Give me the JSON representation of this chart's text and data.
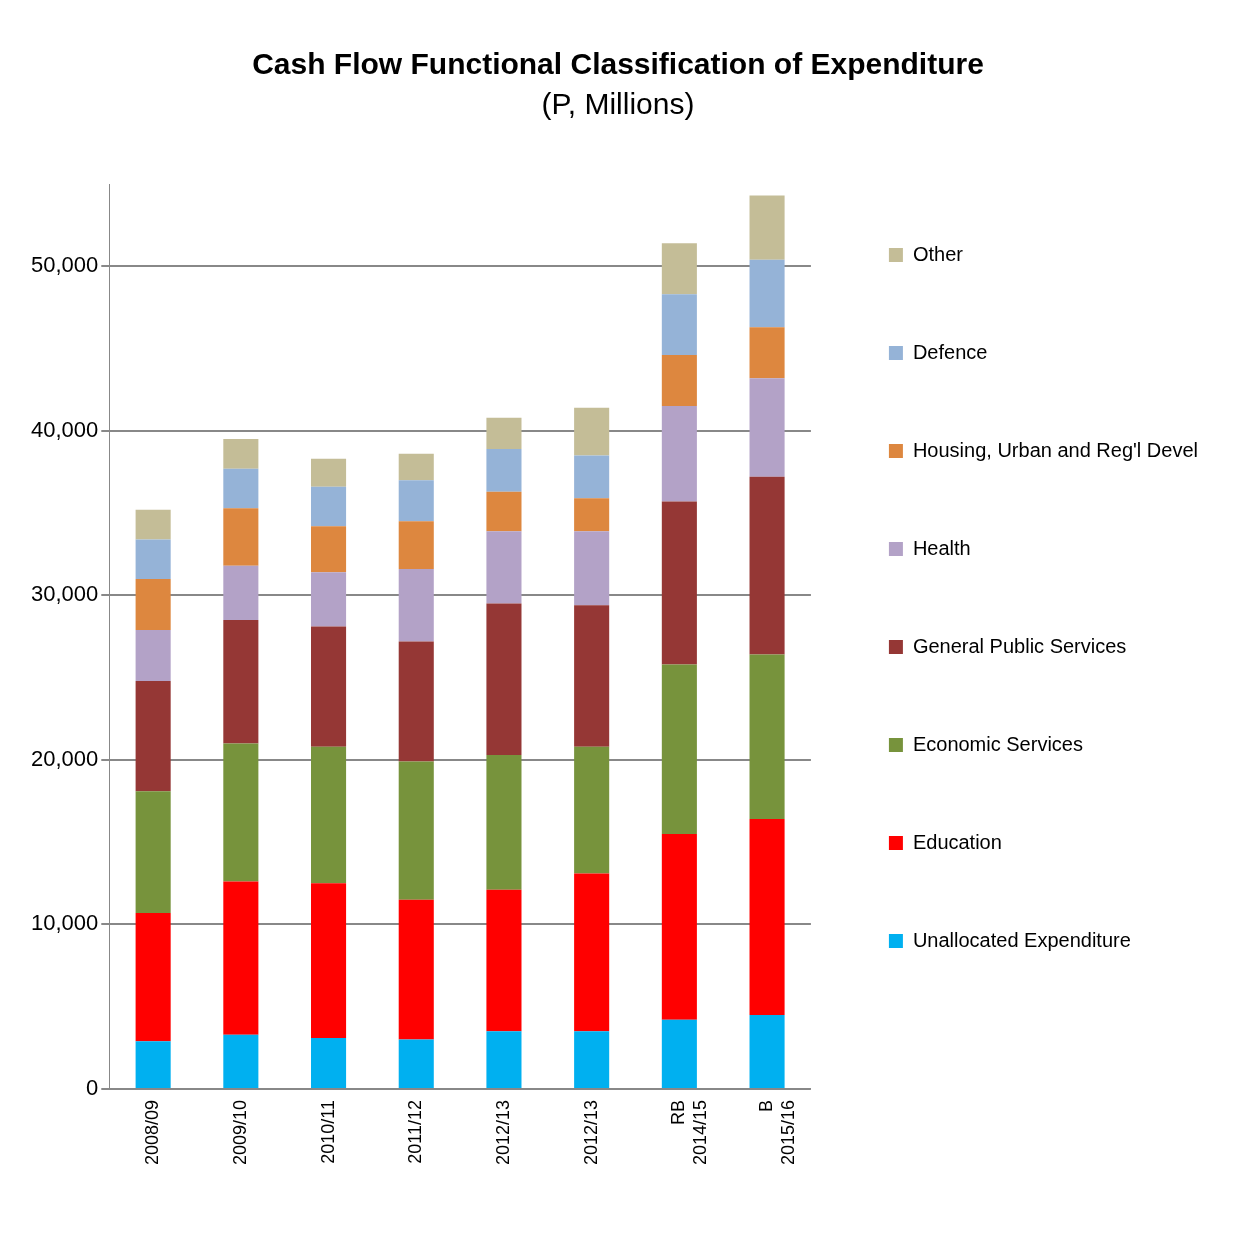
{
  "chart_data": {
    "type": "bar",
    "title": "Cash Flow Functional Classification of Expenditure",
    "subtitle": "(P, Millions)",
    "categories": [
      "2008/09",
      "2009/10",
      "2010/11",
      "2011/12",
      "2012/13",
      "2012/13",
      "RB\n2014/15",
      "B\n2015/16"
    ],
    "stacked": true,
    "ylim": [
      0,
      55000
    ],
    "yticks": [
      0,
      {
        "value": 10000,
        "label": "10,000"
      },
      {
        "value": 20000,
        "label": "20,000"
      },
      {
        "value": 30000,
        "label": "30,000"
      },
      {
        "value": 40000,
        "label": "40,000"
      },
      {
        "value": 50000,
        "label": "50,000"
      }
    ],
    "grid": "y",
    "legend": "right",
    "series": [
      {
        "name": "Unallocated Expenditure",
        "color": "#00b0f0",
        "values": [
          2900,
          3300,
          3100,
          3000,
          3500,
          3500,
          4200,
          4500
        ]
      },
      {
        "name": "Education",
        "color": "#ff0000",
        "values": [
          7800,
          9300,
          9400,
          8500,
          8600,
          9600,
          11300,
          11900
        ]
      },
      {
        "name": "Economic Services",
        "color": "#77933c",
        "values": [
          7400,
          8400,
          8300,
          8400,
          8200,
          7700,
          10300,
          10000
        ]
      },
      {
        "name": "General Public Services",
        "color": "#953735",
        "values": [
          6700,
          7500,
          7300,
          7300,
          9200,
          8600,
          9900,
          10800
        ]
      },
      {
        "name": "Health",
        "color": "#b3a2c7",
        "values": [
          3100,
          3300,
          3300,
          4400,
          4400,
          4500,
          5800,
          6000
        ]
      },
      {
        "name": "Housing, Urban and Reg'l Devel",
        "color": "#dd873f",
        "values": [
          3100,
          3500,
          2800,
          2900,
          2400,
          2000,
          3100,
          3100
        ]
      },
      {
        "name": "Defence",
        "color": "#95b3d7",
        "values": [
          2400,
          2400,
          2400,
          2500,
          2600,
          2600,
          3700,
          4100
        ]
      },
      {
        "name": "Other",
        "color": "#c4bd97",
        "values": [
          1800,
          1800,
          1700,
          1600,
          1900,
          2900,
          3100,
          3900
        ]
      }
    ]
  }
}
